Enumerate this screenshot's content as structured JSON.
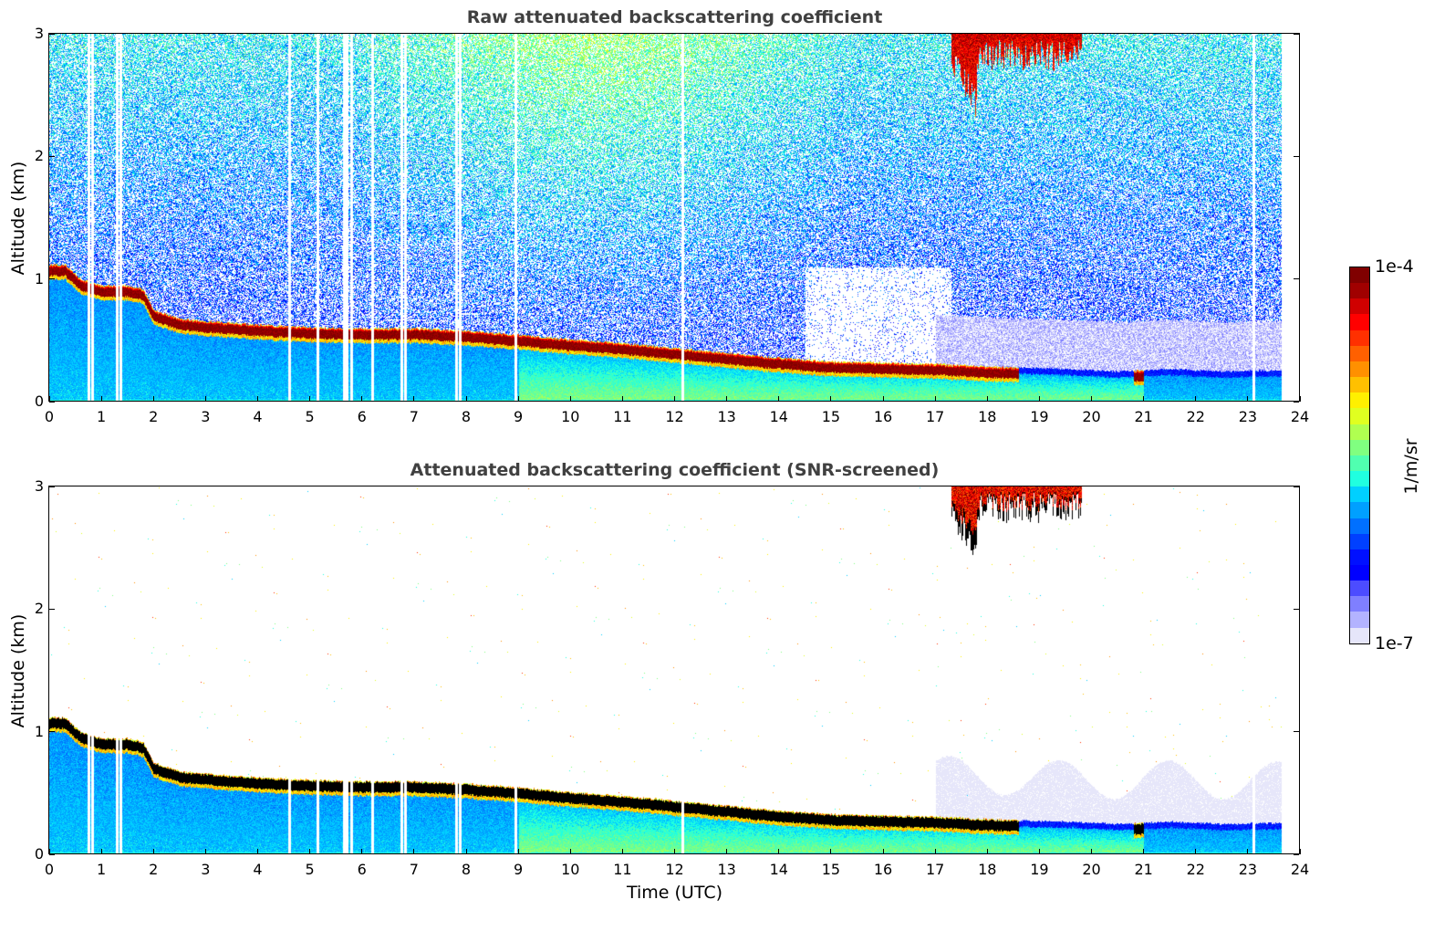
{
  "chart_data": [
    {
      "type": "heatmap",
      "title": "Raw attenuated backscattering coefficient",
      "xlabel": "",
      "ylabel": "Altitude (km)",
      "xlim": [
        0,
        24
      ],
      "ylim": [
        0,
        3
      ],
      "xticks": [
        "0",
        "1",
        "2",
        "3",
        "4",
        "5",
        "6",
        "7",
        "8",
        "9",
        "10",
        "11",
        "12",
        "13",
        "14",
        "15",
        "16",
        "17",
        "18",
        "19",
        "20",
        "21",
        "22",
        "23",
        "24"
      ],
      "yticks": [
        "0",
        "1",
        "2",
        "3"
      ],
      "data_end_hour": 23.65,
      "screened": false,
      "layer_top_km": {
        "hours": [
          0,
          0.3,
          0.6,
          1.0,
          1.5,
          1.8,
          2.0,
          2.5,
          3.0,
          4.0,
          5.0,
          6.0,
          7.0,
          8.0,
          9.0,
          10.0,
          11.0,
          12.0,
          13.0,
          14.0,
          15.0,
          16.0,
          17.0,
          18.0,
          18.6,
          19.5,
          20.5,
          21.5,
          22.5,
          23.65
        ],
        "values": [
          1.12,
          1.12,
          1.0,
          0.95,
          0.95,
          0.92,
          0.75,
          0.68,
          0.66,
          0.63,
          0.61,
          0.6,
          0.6,
          0.58,
          0.55,
          0.51,
          0.48,
          0.44,
          0.4,
          0.36,
          0.33,
          0.32,
          0.31,
          0.29,
          0.28,
          0.27,
          0.25,
          0.27,
          0.25,
          0.26
        ]
      },
      "cloud_layer_end_hour": 18.6,
      "high_cloud": {
        "start_hour": 17.3,
        "end_hour": 19.8,
        "base_km": 2.55
      },
      "dropout_hours": [
        0.75,
        0.82,
        1.3,
        1.36,
        4.6,
        5.15,
        5.65,
        5.7,
        5.8,
        6.2,
        6.75,
        6.82,
        7.8,
        7.88,
        8.95,
        12.15,
        23.1
      ]
    },
    {
      "type": "heatmap",
      "title": "Attenuated backscattering coefficient (SNR-screened)",
      "xlabel": "Time (UTC)",
      "ylabel": "Altitude (km)",
      "xlim": [
        0,
        24
      ],
      "ylim": [
        0,
        3
      ],
      "xticks": [
        "0",
        "1",
        "2",
        "3",
        "4",
        "5",
        "6",
        "7",
        "8",
        "9",
        "10",
        "11",
        "12",
        "13",
        "14",
        "15",
        "16",
        "17",
        "18",
        "19",
        "20",
        "21",
        "22",
        "23",
        "24"
      ],
      "yticks": [
        "0",
        "1",
        "2",
        "3"
      ],
      "data_end_hour": 23.65,
      "screened": true
    }
  ],
  "colorbar": {
    "max_label": "1e-4",
    "min_label": "1e-7",
    "unit": "1/m/sr",
    "colormap": [
      "#e6e6fa",
      "#b3b3ff",
      "#7f7fff",
      "#4c4cff",
      "#0000ff",
      "#0010ff",
      "#0040ff",
      "#0070ff",
      "#00a0ff",
      "#00d0ff",
      "#20ffe0",
      "#50ffb0",
      "#80ff80",
      "#b0ff50",
      "#e0ff20",
      "#fff000",
      "#ffc000",
      "#ff9000",
      "#ff6000",
      "#ff3000",
      "#ff0000",
      "#d00000",
      "#a00000",
      "#800000"
    ]
  }
}
